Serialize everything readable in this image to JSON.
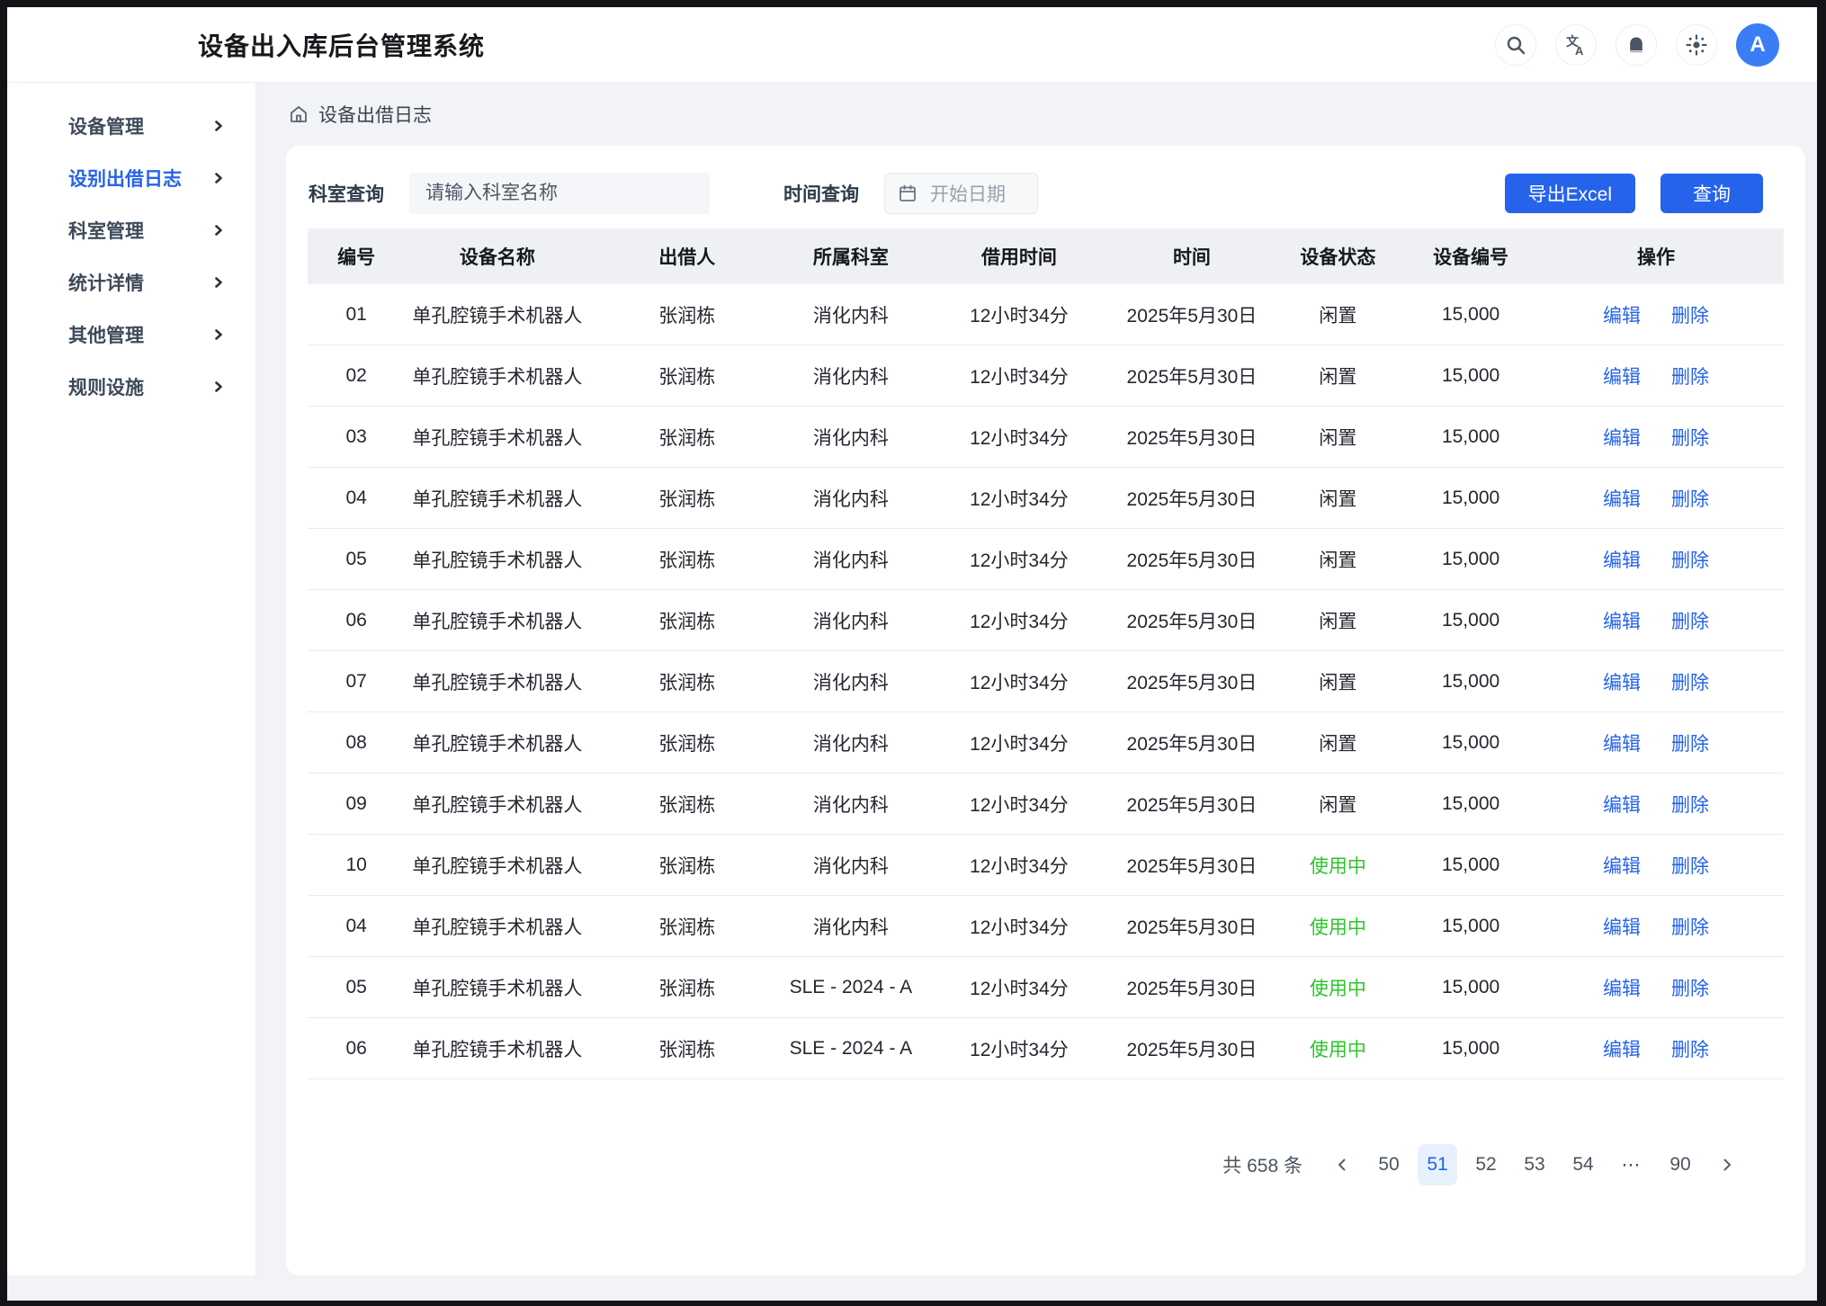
{
  "header": {
    "title": "设备出入库后台管理系统",
    "icons": [
      "search-icon",
      "translate-icon",
      "bell-icon",
      "settings-icon"
    ],
    "avatar": "A"
  },
  "sidebar": {
    "items": [
      {
        "label": "设备管理",
        "active": false
      },
      {
        "label": "设别出借日志",
        "active": true
      },
      {
        "label": "科室管理",
        "active": false
      },
      {
        "label": "统计详情",
        "active": false
      },
      {
        "label": "其他管理",
        "active": false
      },
      {
        "label": "规则设施",
        "active": false
      }
    ]
  },
  "breadcrumb": {
    "label": "设备出借日志"
  },
  "filters": {
    "dept_label": "科室查询",
    "dept_placeholder": "请输入科室名称",
    "dept_value": "",
    "time_label": "时间查询",
    "date_placeholder": "开始日期",
    "export_label": "导出Excel",
    "query_label": "查询"
  },
  "table": {
    "columns": [
      "编号",
      "设备名称",
      "出借人",
      "所属科室",
      "借用时间",
      "时间",
      "设备状态",
      "设备编号",
      "操作"
    ],
    "actions": {
      "edit": "编辑",
      "delete": "删除"
    },
    "rows": [
      {
        "id": "01",
        "name": "单孔腔镜手术机器人",
        "lender": "张润栋",
        "dept": "消化内科",
        "duration": "12小时34分",
        "date": "2025年5月30日",
        "status": "闲置",
        "status_type": "idle",
        "code": "15,000"
      },
      {
        "id": "02",
        "name": "单孔腔镜手术机器人",
        "lender": "张润栋",
        "dept": "消化内科",
        "duration": "12小时34分",
        "date": "2025年5月30日",
        "status": "闲置",
        "status_type": "idle",
        "code": "15,000"
      },
      {
        "id": "03",
        "name": "单孔腔镜手术机器人",
        "lender": "张润栋",
        "dept": "消化内科",
        "duration": "12小时34分",
        "date": "2025年5月30日",
        "status": "闲置",
        "status_type": "idle",
        "code": "15,000"
      },
      {
        "id": "04",
        "name": "单孔腔镜手术机器人",
        "lender": "张润栋",
        "dept": "消化内科",
        "duration": "12小时34分",
        "date": "2025年5月30日",
        "status": "闲置",
        "status_type": "idle",
        "code": "15,000"
      },
      {
        "id": "05",
        "name": "单孔腔镜手术机器人",
        "lender": "张润栋",
        "dept": "消化内科",
        "duration": "12小时34分",
        "date": "2025年5月30日",
        "status": "闲置",
        "status_type": "idle",
        "code": "15,000"
      },
      {
        "id": "06",
        "name": "单孔腔镜手术机器人",
        "lender": "张润栋",
        "dept": "消化内科",
        "duration": "12小时34分",
        "date": "2025年5月30日",
        "status": "闲置",
        "status_type": "idle",
        "code": "15,000"
      },
      {
        "id": "07",
        "name": "单孔腔镜手术机器人",
        "lender": "张润栋",
        "dept": "消化内科",
        "duration": "12小时34分",
        "date": "2025年5月30日",
        "status": "闲置",
        "status_type": "idle",
        "code": "15,000"
      },
      {
        "id": "08",
        "name": "单孔腔镜手术机器人",
        "lender": "张润栋",
        "dept": "消化内科",
        "duration": "12小时34分",
        "date": "2025年5月30日",
        "status": "闲置",
        "status_type": "idle",
        "code": "15,000"
      },
      {
        "id": "09",
        "name": "单孔腔镜手术机器人",
        "lender": "张润栋",
        "dept": "消化内科",
        "duration": "12小时34分",
        "date": "2025年5月30日",
        "status": "闲置",
        "status_type": "idle",
        "code": "15,000"
      },
      {
        "id": "10",
        "name": "单孔腔镜手术机器人",
        "lender": "张润栋",
        "dept": "消化内科",
        "duration": "12小时34分",
        "date": "2025年5月30日",
        "status": "使用中",
        "status_type": "using",
        "code": "15,000"
      },
      {
        "id": "04",
        "name": "单孔腔镜手术机器人",
        "lender": "张润栋",
        "dept": "消化内科",
        "duration": "12小时34分",
        "date": "2025年5月30日",
        "status": "使用中",
        "status_type": "using",
        "code": "15,000"
      },
      {
        "id": "05",
        "name": "单孔腔镜手术机器人",
        "lender": "张润栋",
        "dept": "SLE - 2024 - A",
        "duration": "12小时34分",
        "date": "2025年5月30日",
        "status": "使用中",
        "status_type": "using",
        "code": "15,000"
      },
      {
        "id": "06",
        "name": "单孔腔镜手术机器人",
        "lender": "张润栋",
        "dept": "SLE - 2024 - A",
        "duration": "12小时34分",
        "date": "2025年5月30日",
        "status": "使用中",
        "status_type": "using",
        "code": "15,000"
      }
    ]
  },
  "pagination": {
    "total": "共 658 条",
    "pages": [
      "50",
      "51",
      "52",
      "53",
      "54",
      "⋯",
      "90"
    ],
    "active": "51"
  },
  "colors": {
    "accent": "#2563eb",
    "status_using": "#2bc52b",
    "status_idle": "#23272e",
    "page_active_bg": "#e7f1fe",
    "avatar_bg": "#3b7df5"
  }
}
